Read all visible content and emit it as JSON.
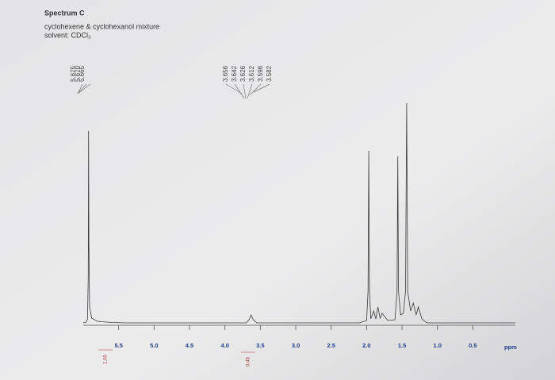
{
  "chart_data": {
    "type": "line",
    "title": "Spectrum C",
    "subtitle": "cyclohexene & cyclohexanol mixture",
    "solvent": "solvent: CDCl₃",
    "x_unit": "ppm",
    "xlim": [
      6.0,
      -0.1
    ],
    "ylim": [
      0,
      300
    ],
    "xticks": [
      5.5,
      {
        "value": 5,
        "label": "5.0"
      },
      4.5,
      {
        "value": 4,
        "label": "4.0"
      },
      3.5,
      {
        "value": 3,
        "label": "3.0"
      },
      2.5,
      {
        "value": 2,
        "label": "2.0"
      },
      1.5,
      {
        "value": 1,
        "label": "1.0"
      },
      0.5
    ],
    "peak_labels": [
      [
        5.675,
        {
          "value": 5.67,
          "label": "5.670"
        },
        5.665
      ],
      [
        3.656,
        3.642,
        3.626,
        3.612,
        3.596,
        3.582
      ]
    ],
    "integrals": [
      {
        "value": 1,
        "label": "1.00"
      },
      0.45
    ],
    "series": [
      {
        "color": "#3a3a3a",
        "x": [
          6.0,
          5.96,
          5.94,
          5.93,
          5.925,
          5.92,
          5.91,
          5.88,
          5.8,
          5.6,
          5.4,
          3.7,
          3.66,
          3.63,
          3.6,
          3.55,
          2.1,
          2.0,
          1.98,
          1.97,
          1.96,
          1.94,
          1.9,
          1.87,
          1.84,
          1.81,
          1.78,
          1.7,
          1.6,
          1.57,
          1.56,
          1.55,
          1.52,
          1.48,
          1.45,
          1.435,
          1.42,
          1.38,
          1.34,
          1.3,
          1.27,
          1.22,
          1.15,
          -0.1
        ],
        "values": [
          0,
          1,
          5,
          60,
          242,
          100,
          20,
          6,
          2,
          0.5,
          0,
          0,
          4,
          10,
          4,
          0,
          0,
          3,
          40,
          217,
          40,
          5,
          15,
          5,
          20,
          6,
          12,
          3,
          4,
          40,
          210,
          40,
          10,
          12,
          40,
          277,
          40,
          15,
          25,
          10,
          20,
          5,
          0,
          0
        ]
      }
    ]
  }
}
